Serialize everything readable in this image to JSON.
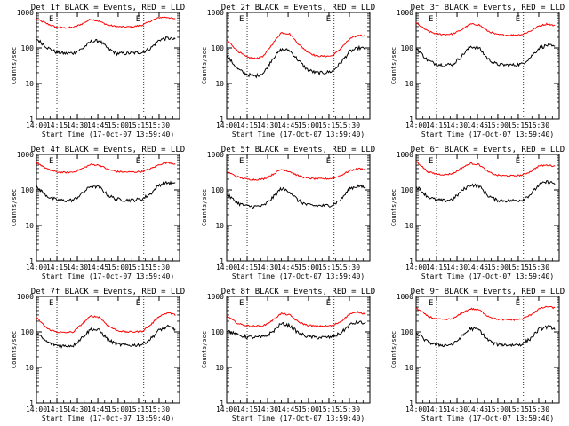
{
  "chart_data": [
    {
      "type": "line",
      "title": "Det 1f BLACK = Events, RED = LLD",
      "xlabel": "Start Time (17-Oct-07 13:59:40)",
      "ylabel": "Counts/sec",
      "xlim": [
        0,
        100
      ],
      "ylim": [
        1,
        1000
      ],
      "yscale": "log",
      "x_tick_labels": [
        "14:00",
        "14:15",
        "14:30",
        "14:45",
        "15:00",
        "15:15",
        "15:30"
      ],
      "x_ticks": [
        0,
        14.3,
        28.6,
        42.9,
        57.1,
        71.4,
        85.7
      ],
      "y_tick_labels": [
        "1",
        "10",
        "100",
        "1000"
      ],
      "y_ticks": [
        1,
        10,
        100,
        1000
      ],
      "vertical_markers": [
        {
          "x": 14.3,
          "label": "E"
        },
        {
          "x": 75,
          "label": "E"
        }
      ],
      "x": [
        0,
        8,
        14,
        20,
        26,
        32,
        38,
        44,
        50,
        56,
        62,
        68,
        74,
        80,
        86,
        92,
        97
      ],
      "series": [
        {
          "color": "#ff0000",
          "values": [
            650,
            470,
            380,
            370,
            380,
            480,
            650,
            560,
            440,
            400,
            390,
            400,
            440,
            580,
            720,
            730,
            640
          ]
        },
        {
          "color": "#000000",
          "values": [
            180,
            100,
            75,
            70,
            72,
            95,
            150,
            160,
            95,
            70,
            70,
            72,
            75,
            100,
            170,
            190,
            170
          ]
        }
      ]
    },
    {
      "type": "line",
      "title": "Det 2f BLACK = Events, RED = LLD",
      "xlabel": "Start Time (17-Oct-07 13:59:40)",
      "ylabel": "Counts/sec",
      "xlim": [
        0,
        100
      ],
      "ylim": [
        1,
        1000
      ],
      "yscale": "log",
      "x_tick_labels": [
        "14:00",
        "14:15",
        "14:30",
        "14:45",
        "15:00",
        "15:15",
        "15:30"
      ],
      "x_ticks": [
        0,
        14.3,
        28.6,
        42.9,
        57.1,
        71.4,
        85.7
      ],
      "y_tick_labels": [
        "1",
        "10",
        "100",
        "1000"
      ],
      "y_ticks": [
        1,
        10,
        100,
        1000
      ],
      "vertical_markers": [
        {
          "x": 14.3,
          "label": "E"
        },
        {
          "x": 75,
          "label": "E"
        }
      ],
      "x": [
        0,
        8,
        14,
        20,
        26,
        32,
        38,
        44,
        50,
        56,
        62,
        68,
        74,
        80,
        86,
        92,
        97
      ],
      "series": [
        {
          "color": "#ff0000",
          "values": [
            170,
            80,
            55,
            50,
            60,
            130,
            270,
            250,
            130,
            80,
            60,
            58,
            60,
            100,
            180,
            230,
            220
          ]
        },
        {
          "color": "#000000",
          "values": [
            60,
            25,
            18,
            16,
            20,
            50,
            90,
            85,
            45,
            25,
            20,
            20,
            22,
            40,
            80,
            100,
            95
          ]
        }
      ]
    },
    {
      "type": "line",
      "title": "Det 3f BLACK = Events, RED = LLD",
      "xlabel": "Start Time (17-Oct-07 13:59:40)",
      "ylabel": "Counts/sec",
      "xlim": [
        0,
        100
      ],
      "ylim": [
        1,
        1000
      ],
      "yscale": "log",
      "x_tick_labels": [
        "14:00",
        "14:15",
        "14:30",
        "14:45",
        "15:00",
        "15:15",
        "15:30"
      ],
      "x_ticks": [
        0,
        14.3,
        28.6,
        42.9,
        57.1,
        71.4,
        85.7
      ],
      "y_tick_labels": [
        "1",
        "10",
        "100",
        "1000"
      ],
      "y_ticks": [
        1,
        10,
        100,
        1000
      ],
      "vertical_markers": [
        {
          "x": 14.3,
          "label": "E"
        },
        {
          "x": 75,
          "label": "E"
        }
      ],
      "x": [
        0,
        8,
        14,
        20,
        26,
        32,
        38,
        44,
        50,
        56,
        62,
        68,
        74,
        80,
        86,
        92,
        97
      ],
      "series": [
        {
          "color": "#ff0000",
          "values": [
            500,
            300,
            250,
            240,
            250,
            330,
            470,
            450,
            300,
            240,
            230,
            230,
            240,
            300,
            420,
            480,
            420
          ]
        },
        {
          "color": "#000000",
          "values": [
            100,
            45,
            35,
            33,
            35,
            60,
            110,
            100,
            50,
            35,
            33,
            33,
            35,
            55,
            100,
            120,
            105
          ]
        }
      ]
    },
    {
      "type": "line",
      "title": "Det 4f BLACK = Events, RED = LLD",
      "xlabel": "Start Time (17-Oct-07 13:59:40)",
      "ylabel": "Counts/sec",
      "xlim": [
        0,
        100
      ],
      "ylim": [
        1,
        1000
      ],
      "yscale": "log",
      "x_tick_labels": [
        "14:00",
        "14:15",
        "14:30",
        "14:45",
        "15:00",
        "15:15",
        "15:30"
      ],
      "x_ticks": [
        0,
        14.3,
        28.6,
        42.9,
        57.1,
        71.4,
        85.7
      ],
      "y_tick_labels": [
        "1",
        "10",
        "100",
        "1000"
      ],
      "y_ticks": [
        1,
        10,
        100,
        1000
      ],
      "vertical_markers": [
        {
          "x": 14.3,
          "label": "E"
        },
        {
          "x": 75,
          "label": "E"
        }
      ],
      "x": [
        0,
        8,
        14,
        20,
        26,
        32,
        38,
        44,
        50,
        56,
        62,
        68,
        74,
        80,
        86,
        92,
        97
      ],
      "series": [
        {
          "color": "#ff0000",
          "values": [
            600,
            380,
            320,
            310,
            320,
            400,
            520,
            500,
            380,
            330,
            320,
            320,
            330,
            400,
            520,
            600,
            540
          ]
        },
        {
          "color": "#000000",
          "values": [
            120,
            65,
            52,
            50,
            52,
            80,
            130,
            120,
            70,
            55,
            52,
            52,
            55,
            80,
            140,
            160,
            145
          ]
        }
      ]
    },
    {
      "type": "line",
      "title": "Det 5f BLACK = Events, RED = LLD",
      "xlabel": "Start Time (17-Oct-07 13:59:40)",
      "ylabel": "Counts/sec",
      "xlim": [
        0,
        100
      ],
      "ylim": [
        1,
        1000
      ],
      "yscale": "log",
      "x_tick_labels": [
        "14:00",
        "14:15",
        "14:30",
        "14:45",
        "15:00",
        "15:15",
        "15:30"
      ],
      "x_ticks": [
        0,
        14.3,
        28.6,
        42.9,
        57.1,
        71.4,
        85.7
      ],
      "y_tick_labels": [
        "1",
        "10",
        "100",
        "1000"
      ],
      "y_ticks": [
        1,
        10,
        100,
        1000
      ],
      "vertical_markers": [
        {
          "x": 14.3,
          "label": "E"
        },
        {
          "x": 75,
          "label": "E"
        }
      ],
      "x": [
        0,
        8,
        14,
        20,
        26,
        32,
        38,
        44,
        50,
        56,
        62,
        68,
        74,
        80,
        86,
        92,
        97
      ],
      "series": [
        {
          "color": "#ff0000",
          "values": [
            330,
            230,
            200,
            195,
            205,
            270,
            380,
            330,
            250,
            215,
            205,
            205,
            210,
            260,
            350,
            400,
            380
          ]
        },
        {
          "color": "#000000",
          "values": [
            75,
            42,
            35,
            34,
            36,
            60,
            110,
            90,
            50,
            38,
            36,
            36,
            38,
            55,
            110,
            130,
            115
          ]
        }
      ]
    },
    {
      "type": "line",
      "title": "Det 6f BLACK = Events, RED = LLD",
      "xlabel": "Start Time (17-Oct-07 13:59:40)",
      "ylabel": "Counts/sec",
      "xlim": [
        0,
        100
      ],
      "ylim": [
        1,
        1000
      ],
      "yscale": "log",
      "x_tick_labels": [
        "14:00",
        "14:15",
        "14:30",
        "14:45",
        "15:00",
        "15:15",
        "15:30"
      ],
      "x_ticks": [
        0,
        14.3,
        28.6,
        42.9,
        57.1,
        71.4,
        85.7
      ],
      "y_tick_labels": [
        "1",
        "10",
        "100",
        "1000"
      ],
      "y_ticks": [
        1,
        10,
        100,
        1000
      ],
      "vertical_markers": [
        {
          "x": 14.3,
          "label": "E"
        },
        {
          "x": 75,
          "label": "E"
        }
      ],
      "x": [
        0,
        8,
        14,
        20,
        26,
        32,
        38,
        44,
        50,
        56,
        62,
        68,
        74,
        80,
        86,
        92,
        97
      ],
      "series": [
        {
          "color": "#ff0000",
          "values": [
            650,
            330,
            280,
            270,
            290,
            420,
            560,
            520,
            330,
            260,
            250,
            250,
            260,
            330,
            480,
            500,
            470
          ]
        },
        {
          "color": "#000000",
          "values": [
            130,
            65,
            52,
            50,
            55,
            95,
            140,
            130,
            70,
            52,
            50,
            50,
            52,
            75,
            140,
            170,
            150
          ]
        }
      ]
    },
    {
      "type": "line",
      "title": "Det 7f BLACK = Events, RED = LLD",
      "xlabel": "Start Time (17-Oct-07 13:59:40)",
      "ylabel": "Counts/sec",
      "xlim": [
        0,
        100
      ],
      "ylim": [
        1,
        1000
      ],
      "yscale": "log",
      "x_tick_labels": [
        "14:00",
        "14:15",
        "14:30",
        "14:45",
        "15:00",
        "15:15",
        "15:30"
      ],
      "x_ticks": [
        0,
        14.3,
        28.6,
        42.9,
        57.1,
        71.4,
        85.7
      ],
      "y_tick_labels": [
        "1",
        "10",
        "100",
        "1000"
      ],
      "y_ticks": [
        1,
        10,
        100,
        1000
      ],
      "vertical_markers": [
        {
          "x": 14.3,
          "label": "E"
        },
        {
          "x": 75,
          "label": "E"
        }
      ],
      "x": [
        0,
        8,
        14,
        20,
        26,
        32,
        38,
        44,
        50,
        56,
        62,
        68,
        74,
        80,
        86,
        92,
        97
      ],
      "series": [
        {
          "color": "#ff0000",
          "values": [
            250,
            120,
            100,
            95,
            100,
            170,
            280,
            260,
            150,
            110,
            100,
            100,
            105,
            160,
            280,
            350,
            300
          ]
        },
        {
          "color": "#000000",
          "values": [
            90,
            50,
            42,
            40,
            42,
            70,
            120,
            110,
            60,
            45,
            42,
            42,
            45,
            65,
            115,
            140,
            120
          ]
        }
      ]
    },
    {
      "type": "line",
      "title": "Det 8f BLACK = Events, RED = LLD",
      "xlabel": "Start Time (17-Oct-07 13:59:40)",
      "ylabel": "Counts/sec",
      "xlim": [
        0,
        100
      ],
      "ylim": [
        1,
        1000
      ],
      "yscale": "log",
      "x_tick_labels": [
        "14:00",
        "14:15",
        "14:30",
        "14:45",
        "15:00",
        "15:15",
        "15:30"
      ],
      "x_ticks": [
        0,
        14.3,
        28.6,
        42.9,
        57.1,
        71.4,
        85.7
      ],
      "y_tick_labels": [
        "1",
        "10",
        "100",
        "1000"
      ],
      "y_ticks": [
        1,
        10,
        100,
        1000
      ],
      "vertical_markers": [
        {
          "x": 14.3,
          "label": "E"
        },
        {
          "x": 75,
          "label": "E"
        }
      ],
      "x": [
        0,
        8,
        14,
        20,
        26,
        32,
        38,
        44,
        50,
        56,
        62,
        68,
        74,
        80,
        86,
        92,
        97
      ],
      "series": [
        {
          "color": "#ff0000",
          "values": [
            280,
            170,
            150,
            145,
            150,
            210,
            330,
            300,
            190,
            155,
            145,
            145,
            150,
            200,
            320,
            360,
            320
          ]
        },
        {
          "color": "#000000",
          "values": [
            110,
            80,
            72,
            70,
            72,
            100,
            170,
            150,
            95,
            75,
            70,
            70,
            72,
            95,
            160,
            190,
            170
          ]
        }
      ]
    },
    {
      "type": "line",
      "title": "Det 9f BLACK = Events, RED = LLD",
      "xlabel": "Start Time (17-Oct-07 13:59:40)",
      "ylabel": "Counts/sec",
      "xlim": [
        0,
        100
      ],
      "ylim": [
        1,
        1000
      ],
      "yscale": "log",
      "x_tick_labels": [
        "14:00",
        "14:15",
        "14:30",
        "14:45",
        "15:00",
        "15:15",
        "15:30"
      ],
      "x_ticks": [
        0,
        14.3,
        28.6,
        42.9,
        57.1,
        71.4,
        85.7
      ],
      "y_tick_labels": [
        "1",
        "10",
        "100",
        "1000"
      ],
      "y_ticks": [
        1,
        10,
        100,
        1000
      ],
      "vertical_markers": [
        {
          "x": 14.3,
          "label": "E"
        },
        {
          "x": 75,
          "label": "E"
        }
      ],
      "x": [
        0,
        8,
        14,
        20,
        26,
        32,
        38,
        44,
        50,
        56,
        62,
        68,
        74,
        80,
        86,
        92,
        97
      ],
      "series": [
        {
          "color": "#ff0000",
          "values": [
            480,
            280,
            230,
            220,
            235,
            340,
            450,
            420,
            280,
            230,
            220,
            220,
            230,
            300,
            450,
            520,
            470
          ]
        },
        {
          "color": "#000000",
          "values": [
            95,
            52,
            44,
            42,
            45,
            75,
            125,
            115,
            60,
            45,
            43,
            43,
            45,
            65,
            120,
            140,
            125
          ]
        }
      ]
    }
  ]
}
